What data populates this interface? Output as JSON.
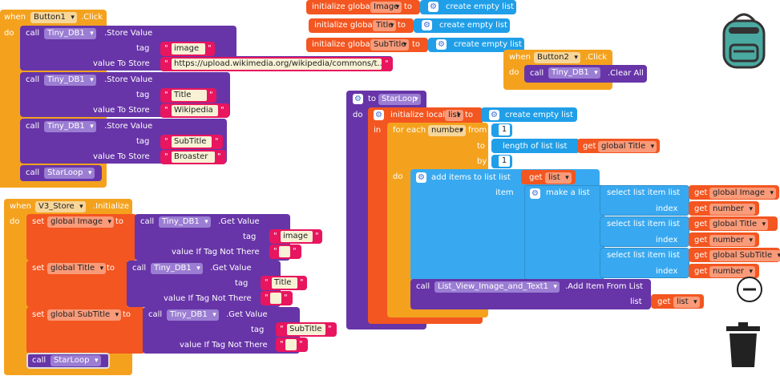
{
  "colors": {
    "event": "#f4a21e",
    "component": "#6735a8",
    "variable": "#f35620",
    "text": "#e8155f",
    "list": "#209fe8",
    "control": "#f4a21e"
  },
  "icons": [
    "backpack-icon",
    "zoom-out-icon",
    "trash-icon",
    "gear-icon"
  ],
  "button1_click": {
    "when": "when",
    "component": "Button1",
    ".click": ".Click",
    "do": "do",
    "rows": [
      {
        "call": "call",
        "comp": "Tiny_DB1",
        "method": ".Store Value",
        "tag_lbl": "tag",
        "tag": "image",
        "val_lbl": "value To Store",
        "val": "https://upload.wikimedia.org/wikipedia/commons/t..."
      },
      {
        "call": "call",
        "comp": "Tiny_DB1",
        "method": ".Store Value",
        "tag_lbl": "tag",
        "tag": "Title",
        "val_lbl": "value To Store",
        "val": "Wikipedia"
      },
      {
        "call": "call",
        "comp": "Tiny_DB1",
        "method": ".Store Value",
        "tag_lbl": "tag",
        "tag": "SubTitle",
        "val_lbl": "value To Store",
        "val": "Broaster"
      }
    ],
    "starloop_call": "call",
    "starloop": "StarLoop"
  },
  "globals": [
    {
      "init": "initialize global",
      "name": "Image",
      "to": "to",
      "val": "create empty list"
    },
    {
      "init": "initialize global",
      "name": "Title",
      "to": "to",
      "val": "create empty list"
    },
    {
      "init": "initialize global",
      "name": "SubTitle",
      "to": "to",
      "val": "create empty list"
    }
  ],
  "button2_click": {
    "when": "when",
    "component": "Button2",
    ".click": ".Click",
    "do": "do",
    "call": "call",
    "comp": "Tiny_DB1",
    "method": ".Clear All"
  },
  "starloop_proc": {
    "to": "to",
    "name": "StarLoop",
    "do": "do",
    "init_local": "initialize local",
    "local_name": "list",
    "local_to": "to",
    "local_val": "create empty list",
    "in": "in",
    "foreach": "for each",
    "var": "number",
    "from": "from",
    "from_v": "1",
    "to_lbl": "to",
    "length": "length of list  list",
    "get": "get",
    "global_title": "global Title",
    "by": "by",
    "by_v": "1",
    "do2": "do",
    "add_items": "add items to list   list",
    "get_list": "list",
    "item": "item",
    "make_list": "make a list",
    "sel": [
      {
        "lbl": "select list item  list",
        "glob": "global Image",
        "idx": "index",
        "num": "number"
      },
      {
        "lbl": "select list item  list",
        "glob": "global Title",
        "idx": "index",
        "num": "number"
      },
      {
        "lbl": "select list item  list",
        "glob": "global SubTitle",
        "idx": "index",
        "num": "number"
      }
    ],
    "call": "call",
    "lv": "List_View_Image_and_Text1",
    "add_from": ".Add Item From List",
    "list_lbl": "list",
    "get_list2": "list"
  },
  "v3_init": {
    "when": "when",
    "component": "V3_Store",
    ".init": ".Initialize",
    "do": "do",
    "sets": [
      {
        "set": "set",
        "var": "global Image",
        "to": "to",
        "call": "call",
        "comp": "Tiny_DB1",
        "method": ".Get Value",
        "tag_lbl": "tag",
        "tag": "image",
        "ifnot": "value If Tag Not There"
      },
      {
        "set": "set",
        "var": "global Title",
        "to": "to",
        "call": "call",
        "comp": "Tiny_DB1",
        "method": ".Get Value",
        "tag_lbl": "tag",
        "tag": "Title",
        "ifnot": "value If Tag Not There"
      },
      {
        "set": "set",
        "var": "global SubTitle",
        "to": "to",
        "call": "call",
        "comp": "Tiny_DB1",
        "method": ".Get Value",
        "tag_lbl": "tag",
        "tag": "SubTitle",
        "ifnot": "value If Tag Not There"
      }
    ],
    "starloop_call": "call",
    "starloop": "StarLoop"
  }
}
